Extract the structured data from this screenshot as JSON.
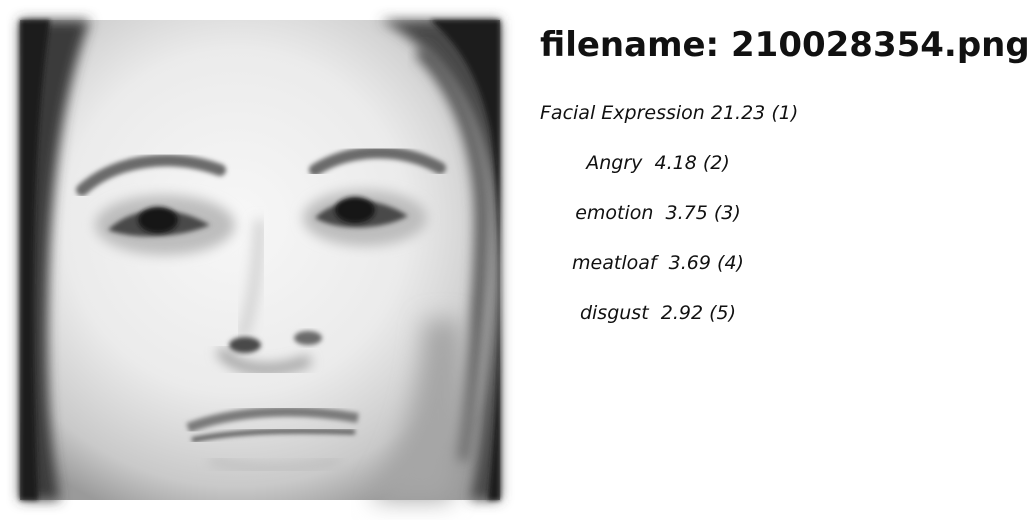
{
  "image": {
    "icon": "grayscale-face-photo",
    "palette": {
      "skin": "#eeeeee",
      "hair": "#1e1e1e",
      "shadow": "#8a8a8a",
      "feature": "#2a2a2a"
    }
  },
  "header": {
    "filename_key": "filename:",
    "filename_value": "210028354.png"
  },
  "results": [
    {
      "label": "Facial Expression",
      "score": "21.23",
      "rank": "(1)"
    },
    {
      "label": "Angry",
      "score": "4.18",
      "rank": "(2)"
    },
    {
      "label": "emotion",
      "score": "3.75",
      "rank": "(3)"
    },
    {
      "label": "meatloaf",
      "score": "3.69",
      "rank": "(4)"
    },
    {
      "label": "disgust",
      "score": "2.92",
      "rank": "(5)"
    }
  ]
}
